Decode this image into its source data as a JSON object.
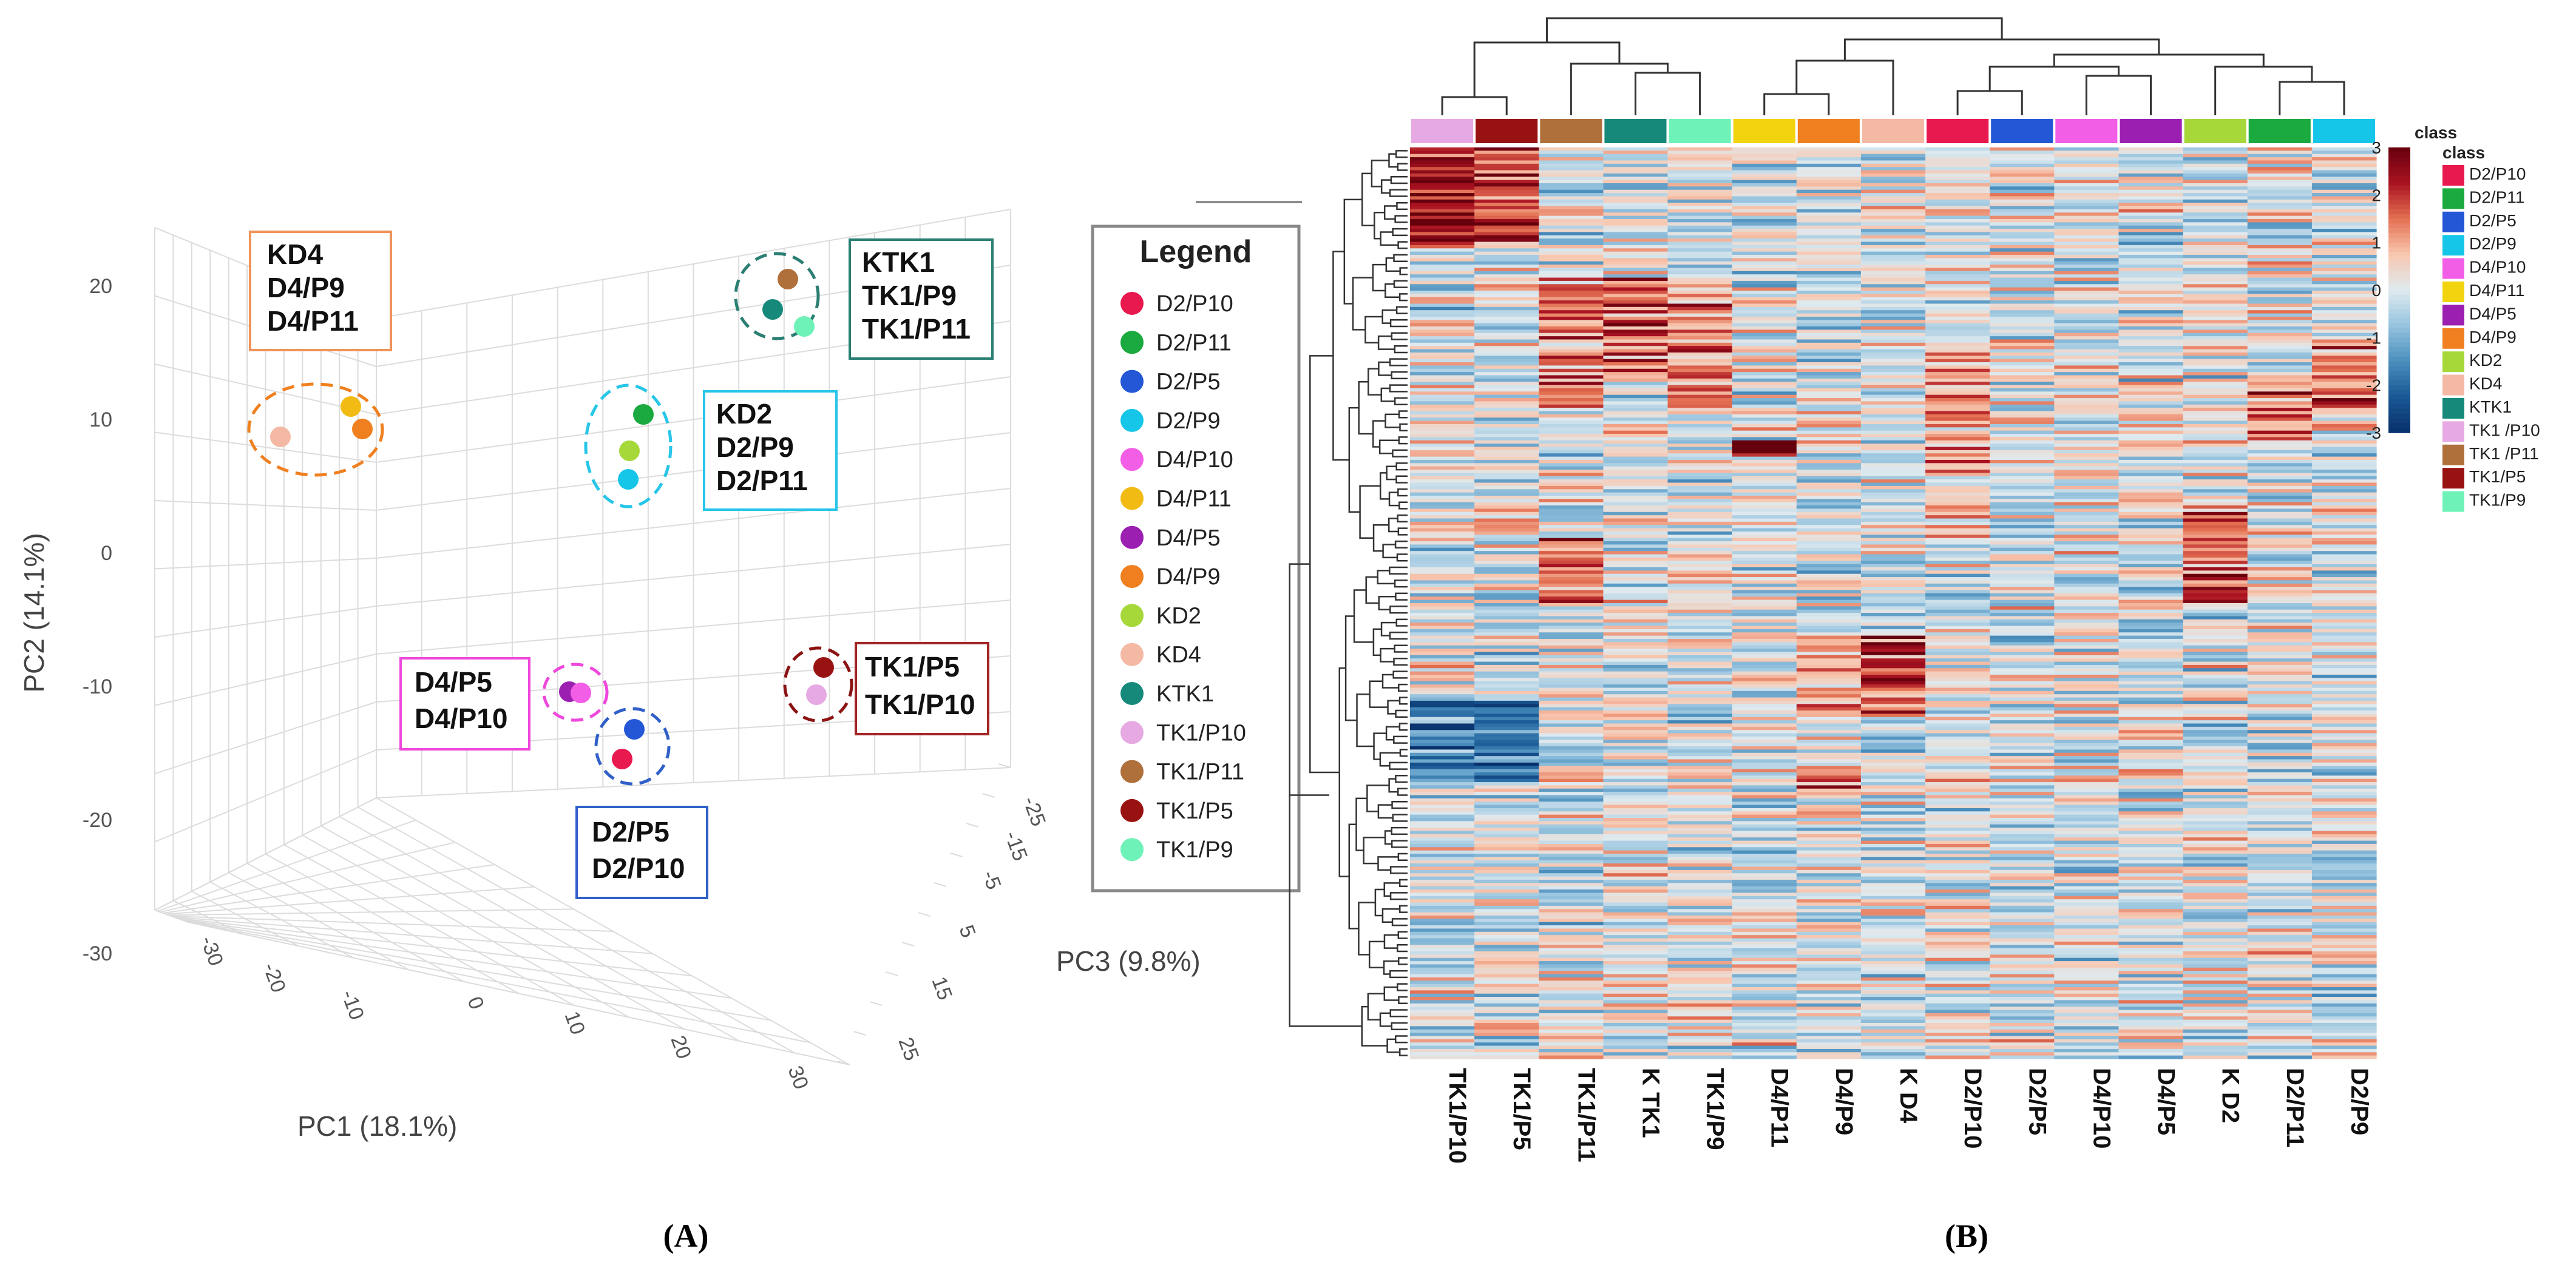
{
  "chart_data": [
    {
      "type": "scatter",
      "panel_label": "(A)",
      "xlabel": "PC1 (18.1%)",
      "ylabel": "PC2 (14.1%)",
      "zlabel": "PC3 (9.8%)",
      "x_ticks": [
        "-30",
        "-20",
        "-10",
        "0",
        "10",
        "20",
        "30"
      ],
      "y_ticks": [
        "20",
        "10",
        "0",
        "-10",
        "-20",
        "-30"
      ],
      "z_ticks": [
        "-25",
        "-15",
        "-5",
        "5",
        "15",
        "25"
      ],
      "legend_title": "Legend",
      "legend": [
        {
          "name": "D2/P10",
          "color": "#e8194f"
        },
        {
          "name": "D2/P11",
          "color": "#1aaa3f"
        },
        {
          "name": "D2/P5",
          "color": "#2457d6"
        },
        {
          "name": "D2/P9",
          "color": "#16c6e8"
        },
        {
          "name": "D4/P10",
          "color": "#f25ee6"
        },
        {
          "name": "D4/P11",
          "color": "#f1bb14"
        },
        {
          "name": "D4/P5",
          "color": "#9b1fb0"
        },
        {
          "name": "D4/P9",
          "color": "#f0801f"
        },
        {
          "name": "KD2",
          "color": "#a6d83a"
        },
        {
          "name": "KD4",
          "color": "#f4b9a4"
        },
        {
          "name": "KTK1",
          "color": "#16897a"
        },
        {
          "name": "TK1/P10",
          "color": "#e6a9e3"
        },
        {
          "name": "TK1/P11",
          "color": "#b0703c"
        },
        {
          "name": "TK1/P5",
          "color": "#991212"
        },
        {
          "name": "TK1/P9",
          "color": "#6ff2b8"
        }
      ],
      "groups": [
        {
          "labels": [
            "KD4",
            "D4/P9",
            "D4/P11"
          ],
          "box_color": "#f0935a",
          "ellipse_color": "#f0801f"
        },
        {
          "labels": [
            "KTK1",
            "TK1/P9",
            "TK1/P11"
          ],
          "box_color": "#2a7e72",
          "ellipse_color": "#2a7e72"
        },
        {
          "labels": [
            "KD2",
            "D2/P9",
            "D2/P11"
          ],
          "box_color": "#27c6e8",
          "ellipse_color": "#27c6e8"
        },
        {
          "labels": [
            "D4/P5",
            "D4/P10"
          ],
          "box_color": "#ee48dc",
          "ellipse_color": "#ee48dc"
        },
        {
          "labels": [
            "TK1/P5",
            "TK1/P10"
          ],
          "box_color": "#a32626",
          "ellipse_color": "#8b1313"
        },
        {
          "labels": [
            "D2/P5",
            "D2/P10"
          ],
          "box_color": "#3060c8",
          "ellipse_color": "#3060c8"
        }
      ]
    },
    {
      "type": "heatmap",
      "panel_label": "(B)",
      "columns": [
        "TK1/P10",
        "TK1/P5",
        "TK1/P11",
        "K TK1",
        "TK1/P9",
        "D4/P11",
        "D4/P9",
        "K D4",
        "D2/P10",
        "D2/P5",
        "D4/P10",
        "D4/P5",
        "K D2",
        "D2/P11",
        "D2/P9"
      ],
      "column_colors": [
        "#e6a9e3",
        "#991212",
        "#b0703c",
        "#16897a",
        "#6ff2b8",
        "#f1d40f",
        "#f0801f",
        "#f4b9a4",
        "#e8194f",
        "#2457d6",
        "#f25ee6",
        "#9b1fb0",
        "#a6d83a",
        "#1aaa3f",
        "#16c6e8"
      ],
      "color_scale": {
        "ticks": [
          "3",
          "2",
          "1",
          "0",
          "-1",
          "-2",
          "-3"
        ],
        "min": -3,
        "max": 3,
        "label": "class"
      },
      "class_legend_title": "class",
      "class_legend": [
        {
          "name": "D2/P10",
          "color": "#e8194f"
        },
        {
          "name": "D2/P11",
          "color": "#1aaa3f"
        },
        {
          "name": "D2/P5",
          "color": "#2457d6"
        },
        {
          "name": "D2/P9",
          "color": "#16c6e8"
        },
        {
          "name": "D4/P10",
          "color": "#f25ee6"
        },
        {
          "name": "D4/P11",
          "color": "#f1d40f"
        },
        {
          "name": "D4/P5",
          "color": "#9b1fb0"
        },
        {
          "name": "D4/P9",
          "color": "#f0801f"
        },
        {
          "name": "KD2",
          "color": "#a6d83a"
        },
        {
          "name": "KD4",
          "color": "#f4b9a4"
        },
        {
          "name": "KTK1",
          "color": "#16897a"
        },
        {
          "name": "TK1 /P10",
          "color": "#e6a9e3"
        },
        {
          "name": "TK1 /P11",
          "color": "#b0703c"
        },
        {
          "name": "TK1/P5",
          "color": "#991212"
        },
        {
          "name": "TK1/P9",
          "color": "#6ff2b8"
        }
      ]
    }
  ]
}
